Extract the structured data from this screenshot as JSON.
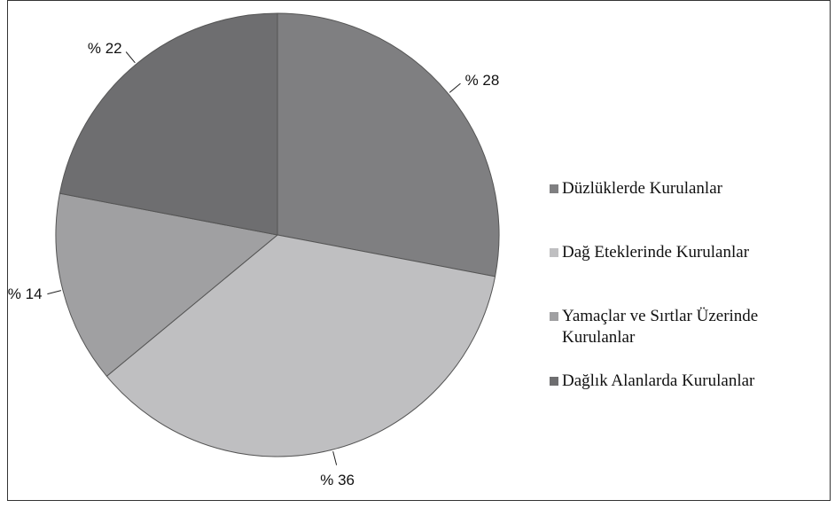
{
  "chart_data": {
    "type": "pie",
    "categories": [
      "Düzlüklerde Kurulanlar",
      "Dağ Eteklerinde Kurulanlar",
      "Yamaçlar ve Sırtlar Üzerinde Kurulanlar",
      "Dağlık Alanlarda Kurulanlar"
    ],
    "values": [
      28,
      36,
      14,
      22
    ],
    "value_labels": [
      "% 28",
      "% 36",
      "% 14",
      "% 22"
    ],
    "colors": [
      "#7f7f81",
      "#bfbfc1",
      "#a0a0a2",
      "#6e6e70"
    ],
    "legend": "right"
  }
}
